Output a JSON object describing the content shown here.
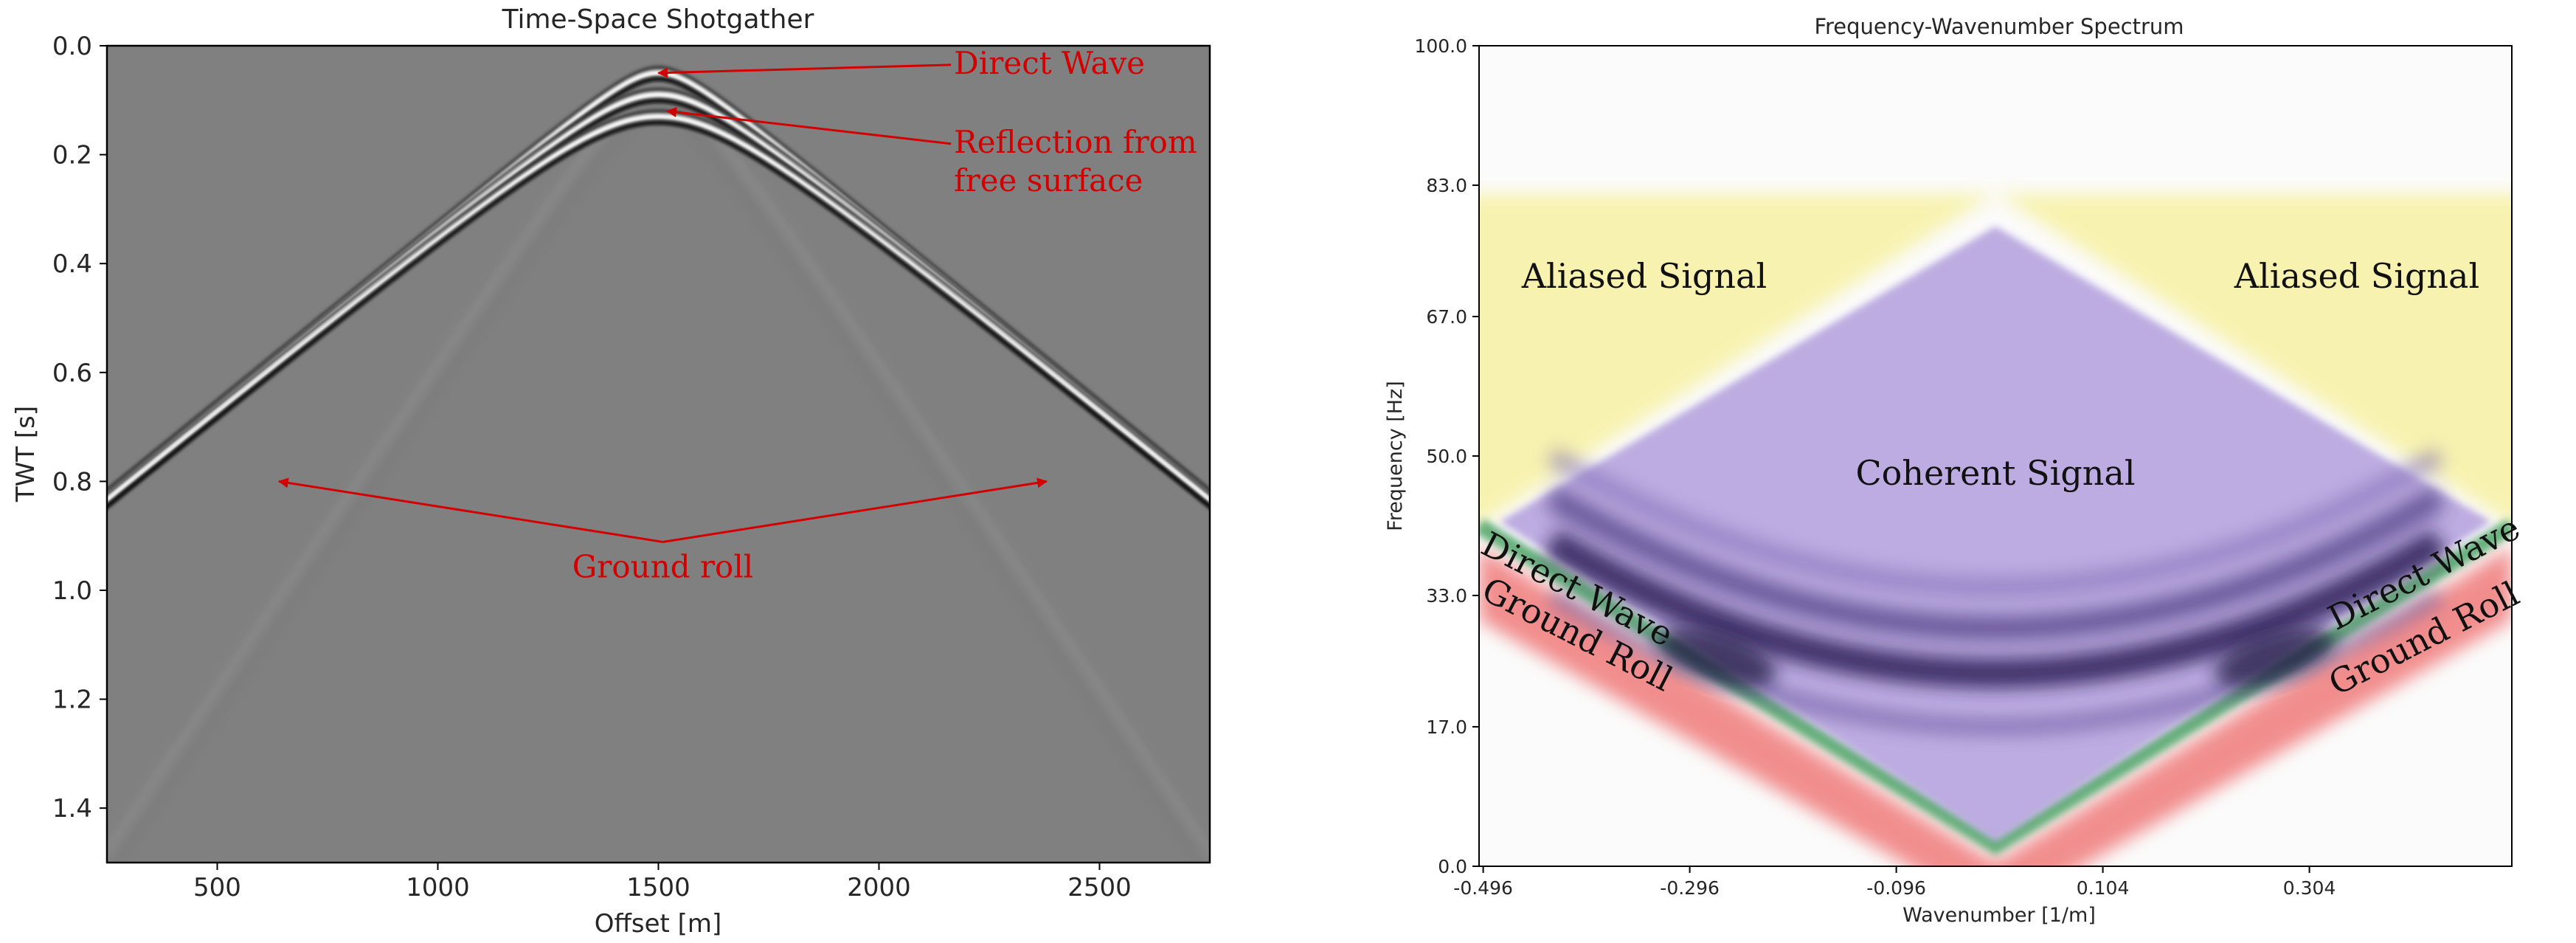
{
  "colors": {
    "annotation": "#d40000",
    "axes": "#000000",
    "seismic_background": "#808080",
    "aliased_region": "#f7f2a8",
    "coherent_region": "#b9a8e0",
    "direct_wave_band": "#58a870",
    "ground_roll_band": "#f07a7a"
  },
  "chart_data": [
    {
      "type": "heatmap",
      "title": "Time-Space Shotgather",
      "xlabel": "Offset [m]",
      "ylabel": "TWT [s]",
      "xlim": [
        250,
        2750
      ],
      "ylim": [
        1.5,
        0.0
      ],
      "y_inverted": true,
      "xticks": [
        500,
        1000,
        1500,
        2000,
        2500
      ],
      "yticks": [
        0.0,
        0.2,
        0.4,
        0.6,
        0.8,
        1.0,
        1.2,
        1.4
      ],
      "colormap": "gray",
      "grid": false,
      "events": [
        {
          "kind": "direct",
          "apex_x": 1500,
          "apex_t": 0.05,
          "slowness_s_per_m": 0.00066
        },
        {
          "kind": "reflection",
          "apex_x": 1500,
          "apex_t": 0.09,
          "slowness_s_per_m": 0.00066
        },
        {
          "kind": "reflection",
          "apex_x": 1500,
          "apex_t": 0.13,
          "slowness_s_per_m": 0.00066
        },
        {
          "kind": "ground_roll",
          "apex_x": 1500,
          "apex_t": 0.1,
          "slowness_s_per_m": 0.0012
        }
      ],
      "annotations": [
        {
          "text": "Direct Wave",
          "xy": [
            1500,
            0.05
          ],
          "xytext": [
            2170,
            0.035
          ]
        },
        {
          "text": "Reflection from free surface",
          "lines": [
            "Reflection from",
            "free surface"
          ],
          "xy": [
            1520,
            0.12
          ],
          "xytext": [
            2170,
            0.18
          ]
        },
        {
          "text": "Ground roll",
          "xy_list": [
            [
              640,
              0.8
            ],
            [
              2380,
              0.8
            ]
          ],
          "xytext": [
            1510,
            0.96
          ]
        }
      ]
    },
    {
      "type": "heatmap",
      "title": "Frequency-Wavenumber Spectrum",
      "xlabel": "Wavenumber [1/m]",
      "ylabel": "Frequency [Hz]",
      "xlim": [
        -0.5,
        0.5
      ],
      "ylim": [
        0.0,
        100.0
      ],
      "xticks": [
        -0.496,
        -0.296,
        -0.096,
        0.104,
        0.304
      ],
      "xticklabels": [
        "-0.496",
        "-0.296",
        "-0.096",
        "0.104",
        "0.304"
      ],
      "yticks": [
        0.0,
        17.0,
        33.0,
        50.0,
        67.0,
        83.0,
        100.0
      ],
      "yticklabels": [
        "0.0",
        "17.0",
        "33.0",
        "50.0",
        "67.0",
        "83.0",
        "100.0"
      ],
      "colormap": "Purples",
      "grid": false,
      "regions": [
        {
          "label": "Aliased Signal",
          "color": "#f7f2a8"
        },
        {
          "label": "Coherent Signal",
          "color": "#b9a8e0"
        },
        {
          "label": "Direct Wave",
          "color": "#58a870"
        },
        {
          "label": "Ground Roll",
          "color": "#f07a7a"
        }
      ],
      "region_labels": [
        {
          "text": "Aliased Signal",
          "pos": [
            -0.34,
            70.5
          ],
          "rotation": 0
        },
        {
          "text": "Aliased Signal",
          "pos": [
            0.35,
            70.5
          ],
          "rotation": 0
        },
        {
          "text": "Coherent Signal",
          "pos": [
            0.0,
            46.5
          ],
          "rotation": 0
        },
        {
          "text": "Direct Wave",
          "pos": [
            -0.41,
            32.5
          ],
          "rotation": 27
        },
        {
          "text": "Ground Roll",
          "pos": [
            -0.41,
            27.0
          ],
          "rotation": 27
        },
        {
          "text": "Direct Wave",
          "pos": [
            0.42,
            34.5
          ],
          "rotation": -27
        },
        {
          "text": "Ground Roll",
          "pos": [
            0.42,
            26.5
          ],
          "rotation": -27
        }
      ]
    }
  ]
}
